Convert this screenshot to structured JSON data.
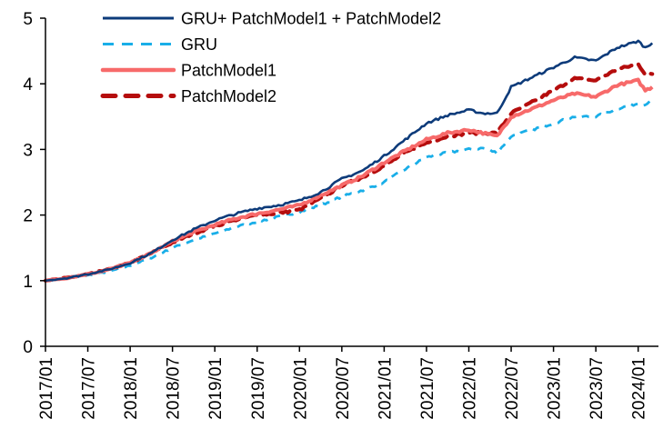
{
  "chart_data": {
    "type": "line",
    "title": "",
    "xlabel": "",
    "ylabel": "",
    "ylim": [
      0,
      5
    ],
    "yticks": [
      0,
      1,
      2,
      3,
      4,
      5
    ],
    "ytick_labels": [
      "0",
      "1",
      "2",
      "3",
      "4",
      "5"
    ],
    "grid": false,
    "legend_position": "top-center",
    "x_start": "2017/01",
    "x_end": "2024/03",
    "xtick_labels": [
      "2017/01",
      "2017/07",
      "2018/01",
      "2018/07",
      "2019/01",
      "2019/07",
      "2020/01",
      "2020/07",
      "2021/01",
      "2021/07",
      "2022/01",
      "2022/07",
      "2023/01",
      "2023/07",
      "2024/01"
    ],
    "x": [
      "2017/01",
      "2017/04",
      "2017/07",
      "2017/10",
      "2018/01",
      "2018/04",
      "2018/07",
      "2018/10",
      "2019/01",
      "2019/04",
      "2019/07",
      "2019/10",
      "2020/01",
      "2020/04",
      "2020/07",
      "2020/10",
      "2021/01",
      "2021/04",
      "2021/07",
      "2021/10",
      "2022/01",
      "2022/03",
      "2022/05",
      "2022/07",
      "2022/10",
      "2023/01",
      "2023/04",
      "2023/07",
      "2023/10",
      "2024/01",
      "2024/02",
      "2024/03"
    ],
    "series": [
      {
        "name": "GRU+ PatchModel1 + PatchModel2",
        "color": "#0d3b7a",
        "style": "solid",
        "values": [
          1.0,
          1.04,
          1.1,
          1.17,
          1.27,
          1.42,
          1.62,
          1.78,
          1.92,
          2.02,
          2.1,
          2.15,
          2.22,
          2.35,
          2.55,
          2.68,
          2.9,
          3.15,
          3.4,
          3.52,
          3.6,
          3.55,
          3.55,
          3.95,
          4.1,
          4.25,
          4.4,
          4.35,
          4.55,
          4.65,
          4.55,
          4.62
        ]
      },
      {
        "name": "GRU",
        "color": "#19aee8",
        "style": "dashed",
        "values": [
          1.0,
          1.03,
          1.08,
          1.14,
          1.23,
          1.35,
          1.5,
          1.62,
          1.72,
          1.82,
          1.9,
          1.97,
          2.05,
          2.15,
          2.28,
          2.38,
          2.5,
          2.7,
          2.88,
          2.95,
          3.0,
          3.02,
          2.95,
          3.2,
          3.3,
          3.4,
          3.5,
          3.5,
          3.62,
          3.7,
          3.68,
          3.78
        ]
      },
      {
        "name": "PatchModel1",
        "color": "#f76a6a",
        "style": "solid",
        "values": [
          1.0,
          1.04,
          1.1,
          1.17,
          1.27,
          1.42,
          1.6,
          1.74,
          1.85,
          1.95,
          2.02,
          2.08,
          2.15,
          2.3,
          2.45,
          2.6,
          2.8,
          2.98,
          3.15,
          3.25,
          3.3,
          3.25,
          3.2,
          3.5,
          3.62,
          3.75,
          3.85,
          3.8,
          3.98,
          4.05,
          3.9,
          3.95
        ]
      },
      {
        "name": "PatchModel2",
        "color": "#b50d0d",
        "style": "dashed",
        "values": [
          1.0,
          1.04,
          1.1,
          1.17,
          1.27,
          1.42,
          1.58,
          1.72,
          1.83,
          1.93,
          2.0,
          2.03,
          2.08,
          2.25,
          2.45,
          2.58,
          2.75,
          2.95,
          3.1,
          3.2,
          3.25,
          3.25,
          3.25,
          3.55,
          3.72,
          3.9,
          4.08,
          4.05,
          4.22,
          4.3,
          4.15,
          4.15
        ]
      }
    ]
  }
}
